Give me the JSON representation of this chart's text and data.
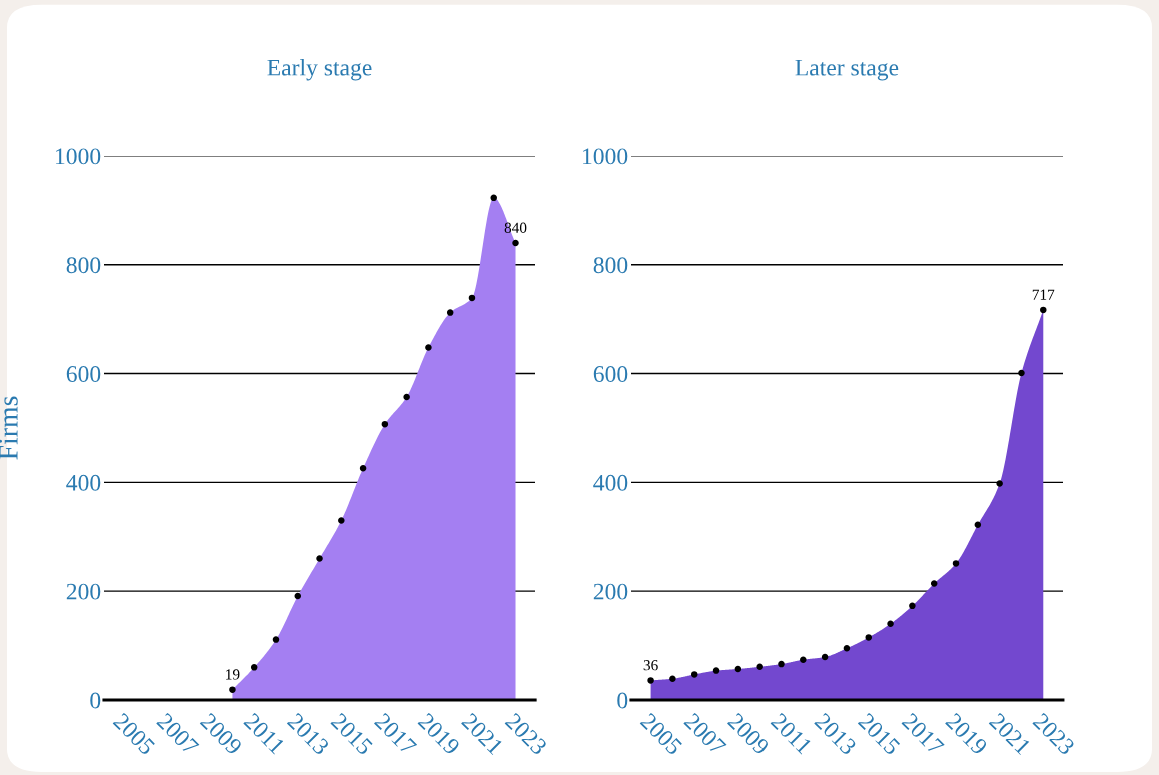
{
  "chart_data": [
    {
      "type": "area",
      "title": "Early stage",
      "ylabel": "Firms",
      "color": "#a47ff2",
      "marker": "circle",
      "grid": "y",
      "x": [
        2010,
        2011,
        2012,
        2013,
        2014,
        2015,
        2016,
        2017,
        2018,
        2019,
        2020,
        2021,
        2022,
        2023
      ],
      "values": [
        19,
        60,
        111,
        191,
        260,
        330,
        426,
        507,
        557,
        648,
        712,
        739,
        923,
        840
      ],
      "value_labels": [
        "19",
        null,
        null,
        null,
        null,
        null,
        null,
        null,
        null,
        null,
        null,
        null,
        null,
        "840"
      ],
      "xlim": [
        2004.1,
        2023.9
      ],
      "xticks": [
        2005,
        2007,
        2009,
        2011,
        2013,
        2015,
        2017,
        2019,
        2021,
        2023
      ],
      "ylim": [
        0,
        1000
      ],
      "yticks": [
        0,
        200,
        400,
        600,
        800,
        1000
      ]
    },
    {
      "type": "area",
      "title": "Later stage",
      "color": "#7348cf",
      "marker": "circle",
      "grid": "y",
      "x": [
        2005,
        2006,
        2007,
        2008,
        2009,
        2010,
        2011,
        2012,
        2013,
        2014,
        2015,
        2016,
        2017,
        2018,
        2019,
        2020,
        2021,
        2022,
        2023
      ],
      "values": [
        36,
        39,
        47,
        54,
        57,
        61,
        66,
        74,
        79,
        95,
        115,
        140,
        173,
        214,
        251,
        322,
        398,
        601,
        717
      ],
      "value_labels": [
        "36",
        null,
        null,
        null,
        null,
        null,
        null,
        null,
        null,
        null,
        null,
        null,
        null,
        null,
        null,
        null,
        null,
        null,
        "717"
      ],
      "xlim": [
        2004.1,
        2023.9
      ],
      "xticks": [
        2005,
        2007,
        2009,
        2011,
        2013,
        2015,
        2017,
        2019,
        2021,
        2023
      ],
      "ylim": [
        0,
        1000
      ],
      "yticks": [
        0,
        200,
        400,
        600,
        800,
        1000
      ]
    }
  ]
}
